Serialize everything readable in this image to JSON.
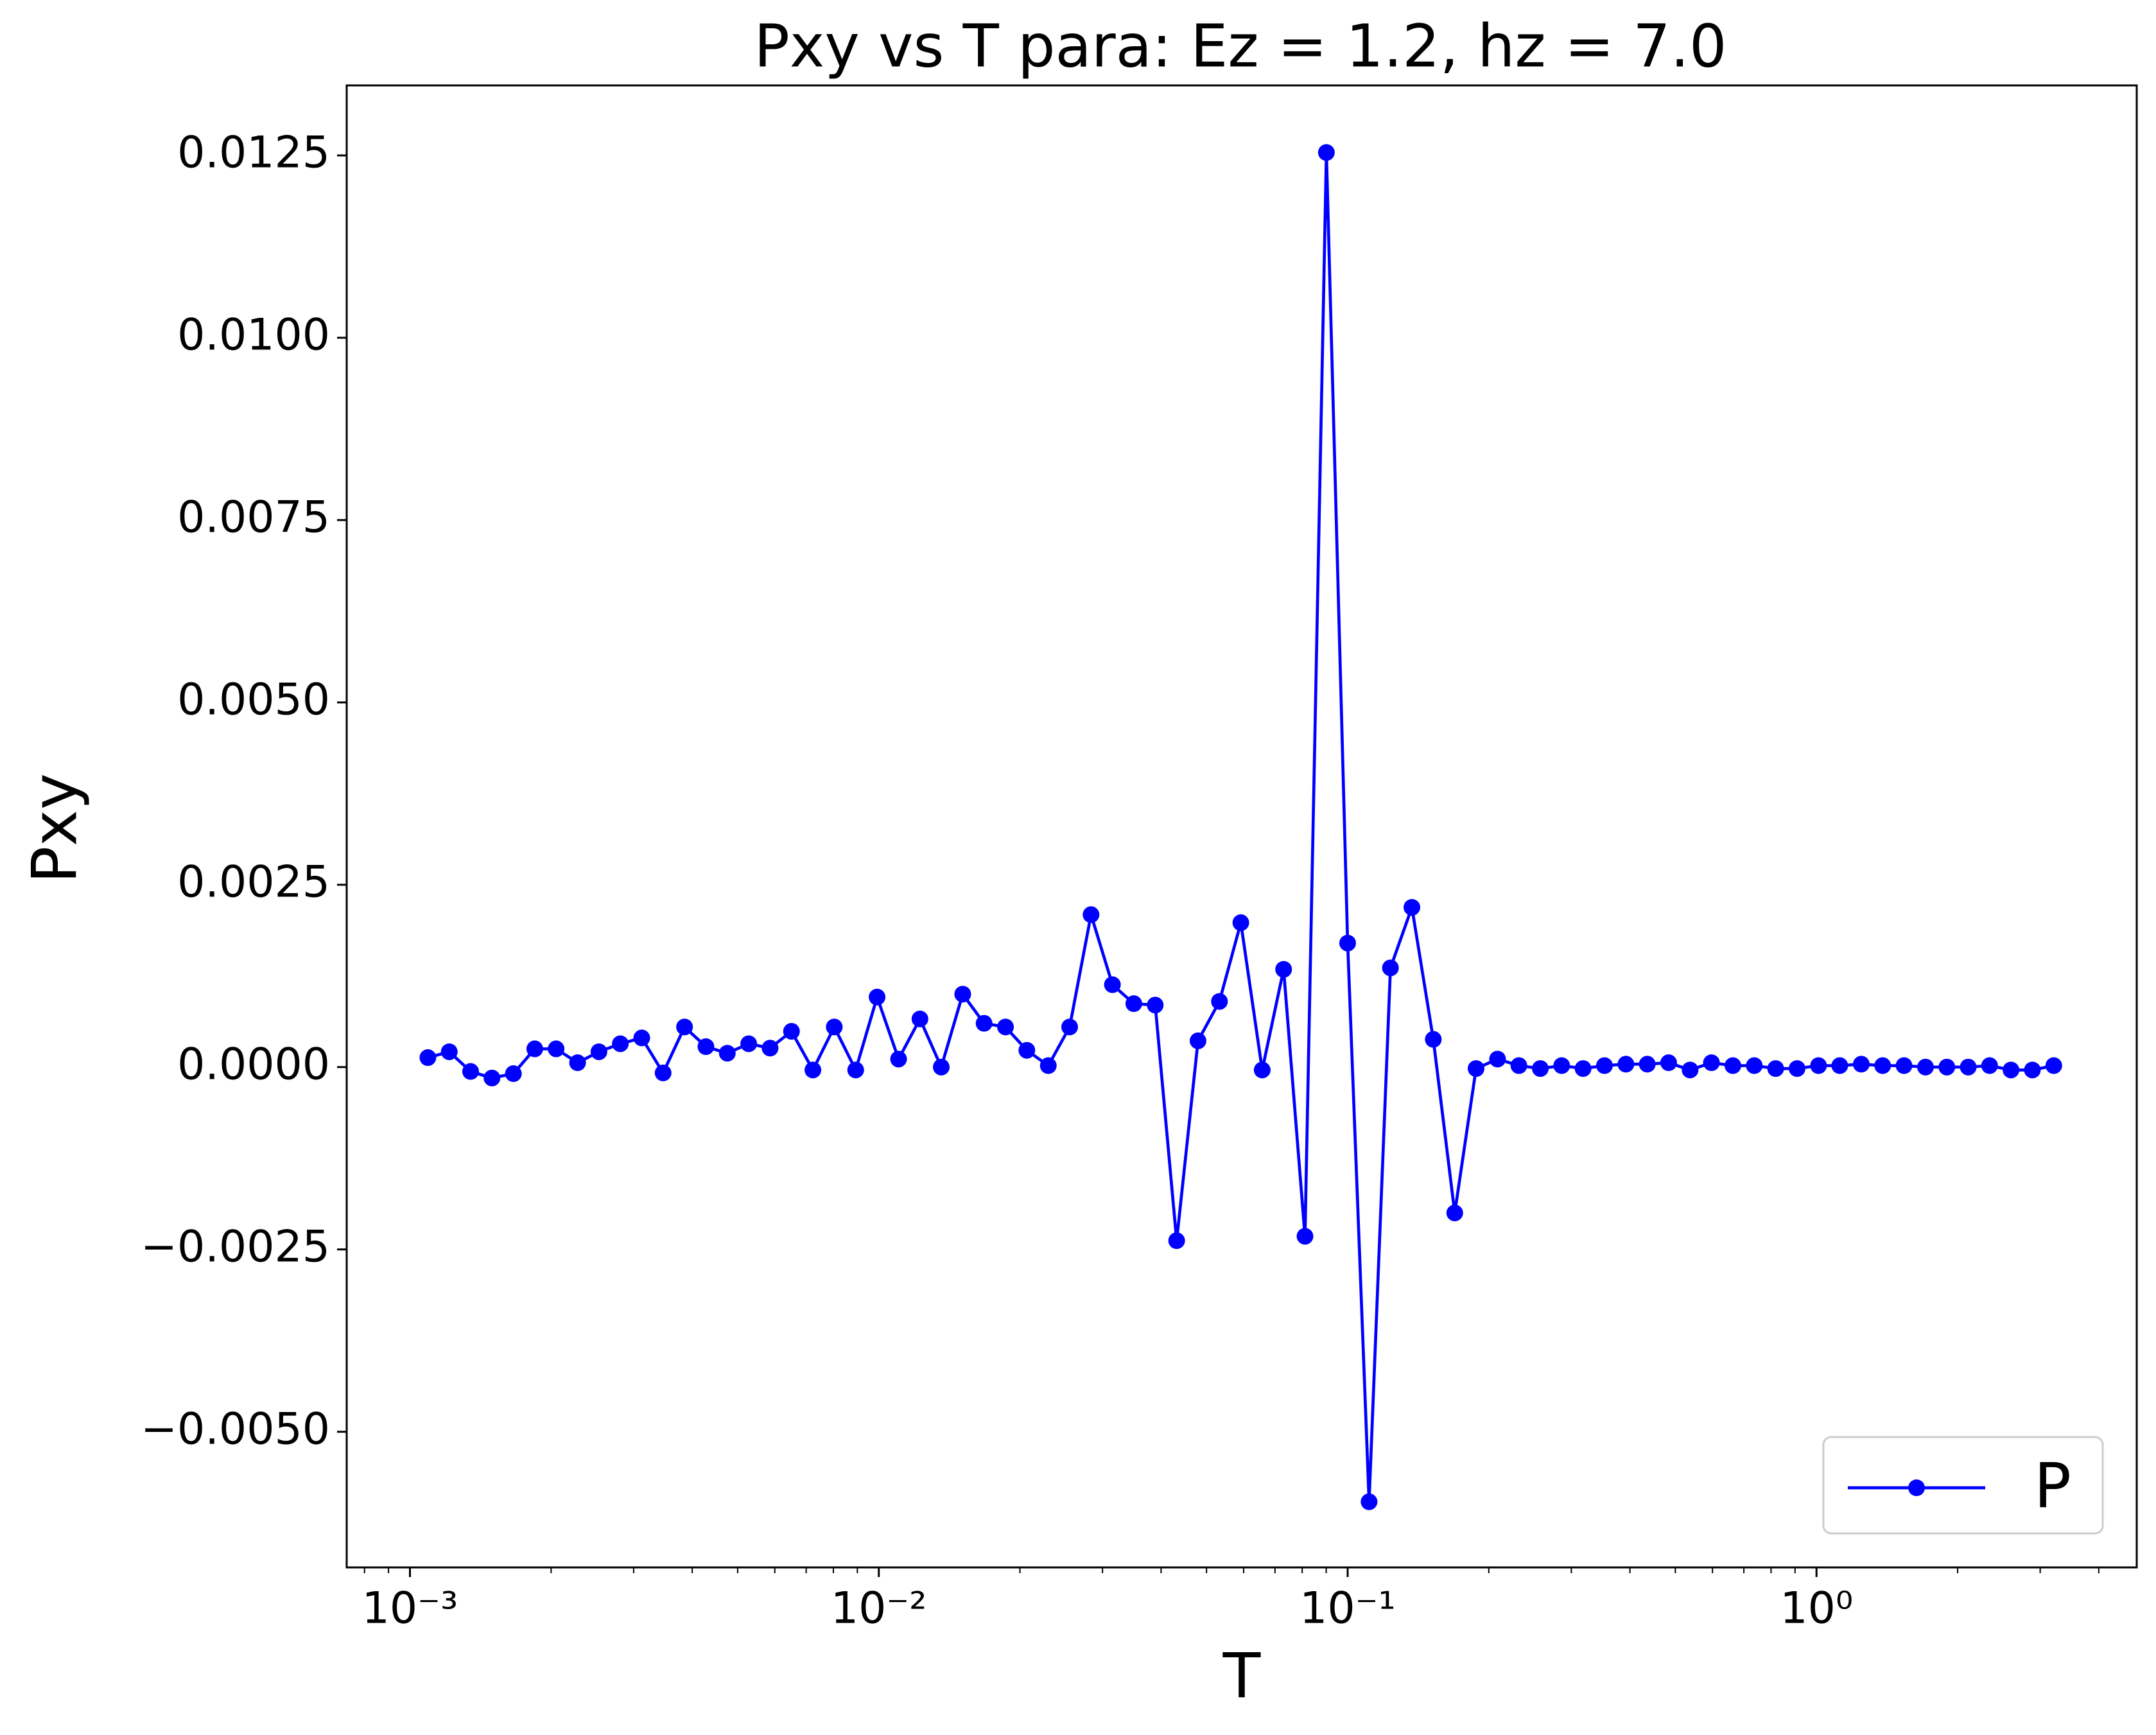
{
  "chart_data": {
    "type": "line",
    "title": "Pxy vs T para: Ez = 1.2, hz = 7.0",
    "x_label": "T",
    "y_label": "Pxy",
    "xscale": "log",
    "xlim": [
      0.000733,
      4.82
    ],
    "ylim": [
      -0.00686,
      0.01346
    ],
    "xticks": [
      {
        "value": 0.001,
        "label": "10⁻³"
      },
      {
        "value": 0.01,
        "label": "10⁻²"
      },
      {
        "value": 0.1,
        "label": "10⁻¹"
      },
      {
        "value": 1,
        "label": "10⁰"
      }
    ],
    "xminorticks": [
      0.0008,
      0.0009,
      0.002,
      0.003,
      0.004,
      0.005,
      0.006,
      0.007,
      0.008,
      0.009,
      0.02,
      0.03,
      0.04,
      0.05,
      0.06,
      0.07,
      0.08,
      0.09,
      0.2,
      0.3,
      0.4,
      0.5,
      0.6,
      0.7,
      0.8,
      0.9,
      2,
      3,
      4
    ],
    "yticks": [
      {
        "value": -0.005,
        "label": "−0.0050"
      },
      {
        "value": -0.0025,
        "label": "−0.0025"
      },
      {
        "value": 0,
        "label": "0.0000"
      },
      {
        "value": 0.0025,
        "label": "0.0025"
      },
      {
        "value": 0.005,
        "label": "0.0050"
      },
      {
        "value": 0.0075,
        "label": "0.0075"
      },
      {
        "value": 0.01,
        "label": "0.0100"
      },
      {
        "value": 0.0125,
        "label": "0.0125"
      }
    ],
    "legend_loc": "lower right",
    "x": [
      0.001092,
      0.001213,
      0.001347,
      0.001496,
      0.001662,
      0.001846,
      0.00205,
      0.002278,
      0.00253,
      0.00281,
      0.003122,
      0.003467,
      0.003852,
      0.004278,
      0.004752,
      0.005279,
      0.005863,
      0.006513,
      0.007235,
      0.008036,
      0.008927,
      0.009917,
      0.01102,
      0.01224,
      0.01359,
      0.0151,
      0.01677,
      0.01863,
      0.02069,
      0.02299,
      0.02553,
      0.02836,
      0.0315,
      0.03499,
      0.03887,
      0.04318,
      0.04796,
      0.05328,
      0.05918,
      0.06573,
      0.07302,
      0.0811,
      0.09009,
      0.1,
      0.1111,
      0.1234,
      0.1371,
      0.1523,
      0.1692,
      0.1879,
      0.2088,
      0.2319,
      0.2576,
      0.2861,
      0.3178,
      0.353,
      0.3922,
      0.4356,
      0.4838,
      0.5375,
      0.597,
      0.6632,
      0.7367,
      0.8183,
      0.909,
      1.01,
      1.121,
      1.246,
      1.384,
      1.537,
      1.708,
      1.897,
      2.107,
      2.34,
      2.599,
      2.887,
      3.207
    ],
    "series": [
      {
        "name": "P",
        "color": "#0000ff",
        "values": [
          0.00013,
          0.00021,
          -6e-05,
          -0.00015,
          -9e-05,
          0.00025,
          0.00025,
          6e-05,
          0.00021,
          0.00032,
          0.0004,
          -8e-05,
          0.00055,
          0.00028,
          0.00019,
          0.00032,
          0.00026,
          0.00049,
          -4e-05,
          0.00055,
          -4e-05,
          0.00096,
          0.00011,
          0.00066,
          0.0,
          0.001,
          0.0006,
          0.00055,
          0.00023,
          2e-05,
          0.00055,
          0.00209,
          0.00113,
          0.00087,
          0.00085,
          -0.00238,
          0.00036,
          0.0009,
          0.00198,
          -4e-05,
          0.00134,
          -0.00232,
          0.01254,
          0.0017,
          -0.00596,
          0.00136,
          0.00219,
          0.00038,
          -0.002,
          -2e-05,
          0.00011,
          2e-05,
          -2e-05,
          2e-05,
          -2e-05,
          2e-05,
          4e-05,
          4e-05,
          6e-05,
          -4e-05,
          6e-05,
          2e-05,
          2e-05,
          -2e-05,
          -2e-05,
          2e-05,
          2e-05,
          4e-05,
          2e-05,
          2e-05,
          0.0,
          0.0,
          0.0,
          2e-05,
          -4e-05,
          -4e-05,
          2e-05
        ]
      }
    ]
  }
}
